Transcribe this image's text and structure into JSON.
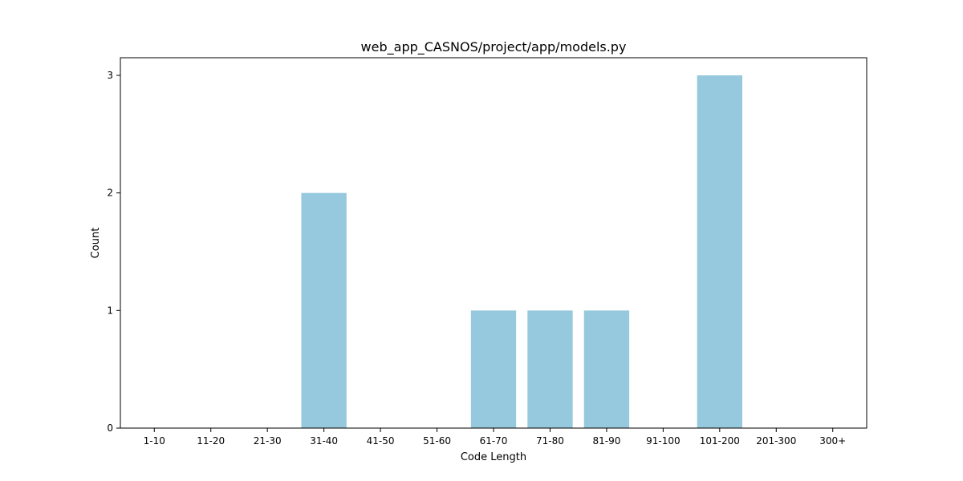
{
  "chart_data": {
    "type": "bar",
    "title": "web_app_CASNOS/project/app/models.py",
    "xlabel": "Code Length",
    "ylabel": "Count",
    "categories": [
      "1-10",
      "11-20",
      "21-30",
      "31-40",
      "41-50",
      "51-60",
      "61-70",
      "71-80",
      "81-90",
      "91-100",
      "101-200",
      "201-300",
      "300+"
    ],
    "values": [
      0,
      0,
      0,
      2,
      0,
      0,
      1,
      1,
      1,
      0,
      3,
      0,
      0
    ],
    "yticks": [
      "0",
      "1",
      "2",
      "3"
    ],
    "ylim": [
      0,
      3.15
    ],
    "grid": false,
    "legend": "none",
    "bar_color": "#96c9dd"
  }
}
